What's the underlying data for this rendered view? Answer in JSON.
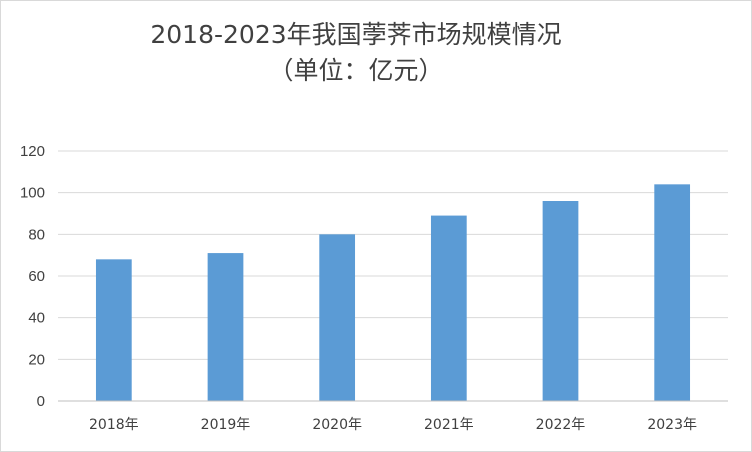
{
  "chart_data": {
    "type": "bar",
    "title": "2018-2023年我国荸荠市场规模情况",
    "subtitle": "（单位：亿元）",
    "categories": [
      "2018年",
      "2019年",
      "2020年",
      "2021年",
      "2022年",
      "2023年"
    ],
    "values": [
      68,
      71,
      80,
      89,
      96,
      104
    ],
    "ylim": [
      0,
      120
    ],
    "yticks": [
      0,
      20,
      40,
      60,
      80,
      100,
      120
    ],
    "grid": true,
    "legend": "none",
    "bar_color": "#5b9bd5",
    "gridline_color": "#d9d9d9",
    "axis_color": "#bfbfbf"
  }
}
